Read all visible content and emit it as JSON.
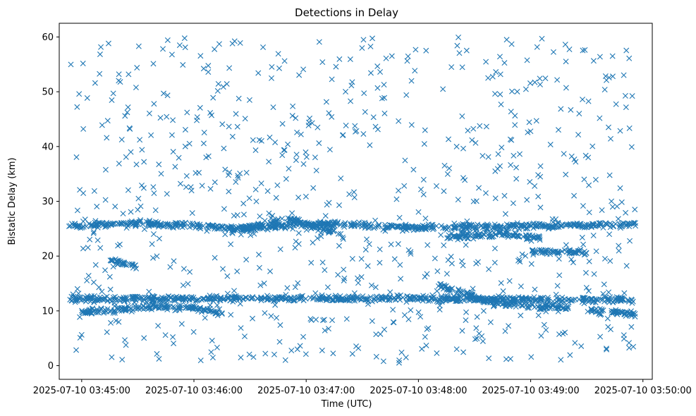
{
  "chart_data": {
    "type": "scatter",
    "title": "Detections in Delay",
    "xlabel": "Time (UTC)",
    "ylabel": "Bistatic Delay (km)",
    "marker": "x",
    "marker_color": "#1f77b4",
    "x_ticks": [
      "2025-07-10 03:45:00",
      "2025-07-10 03:46:00",
      "2025-07-10 03:47:00",
      "2025-07-10 03:48:00",
      "2025-07-10 03:49:00",
      "2025-07-10 03:50:00"
    ],
    "y_ticks": [
      0,
      10,
      20,
      30,
      40,
      50,
      60
    ],
    "xlim": [
      "2025-07-10 03:44:48",
      "2025-07-10 03:50:05"
    ],
    "ylim": [
      -2.5,
      62.5
    ],
    "grid": false,
    "data_range": {
      "x": [
        "2025-07-10 03:44:53",
        "2025-07-10 03:49:56"
      ],
      "y": [
        0.5,
        60
      ]
    },
    "tracks": [
      {
        "x": [
          "2025-07-10 03:44:53",
          "2025-07-10 03:47:22",
          "2025-07-10 03:49:56"
        ],
        "y": [
          12.2,
          12.3,
          12.0
        ]
      },
      {
        "x": [
          "2025-07-10 03:45:00",
          "2025-07-10 03:45:20",
          "2025-07-10 03:45:40",
          "2025-07-10 03:46:00",
          "2025-07-10 03:46:15"
        ],
        "y": [
          9.8,
          10.3,
          10.8,
          10.5,
          9.5
        ]
      },
      {
        "x": [
          "2025-07-10 03:45:15",
          "2025-07-10 03:45:30"
        ],
        "y": [
          19.3,
          18.0
        ]
      },
      {
        "x": [
          "2025-07-10 03:44:53",
          "2025-07-10 03:45:30",
          "2025-07-10 03:46:30",
          "2025-07-10 03:47:00",
          "2025-07-10 03:47:30",
          "2025-07-10 03:48:00",
          "2025-07-10 03:49:00",
          "2025-07-10 03:49:56"
        ],
        "y": [
          25.5,
          26.0,
          25.0,
          26.0,
          25.5,
          25.2,
          25.5,
          25.8
        ]
      },
      {
        "x": [
          "2025-07-10 03:46:20",
          "2025-07-10 03:46:50",
          "2025-07-10 03:47:20"
        ],
        "y": [
          24.5,
          26.8,
          24.0
        ]
      },
      {
        "x": [
          "2025-07-10 03:48:15",
          "2025-07-10 03:48:45",
          "2025-07-10 03:49:05"
        ],
        "y": [
          23.5,
          24.0,
          23.2
        ]
      },
      {
        "x": [
          "2025-07-10 03:48:10",
          "2025-07-10 03:48:40",
          "2025-07-10 03:49:20"
        ],
        "y": [
          14.7,
          11.5,
          10.5
        ]
      },
      {
        "x": [
          "2025-07-10 03:49:00",
          "2025-07-10 03:49:30"
        ],
        "y": [
          20.8,
          20.7
        ]
      },
      {
        "x": [
          "2025-07-10 03:49:30",
          "2025-07-10 03:49:56"
        ],
        "y": [
          10.0,
          9.5
        ]
      }
    ]
  }
}
